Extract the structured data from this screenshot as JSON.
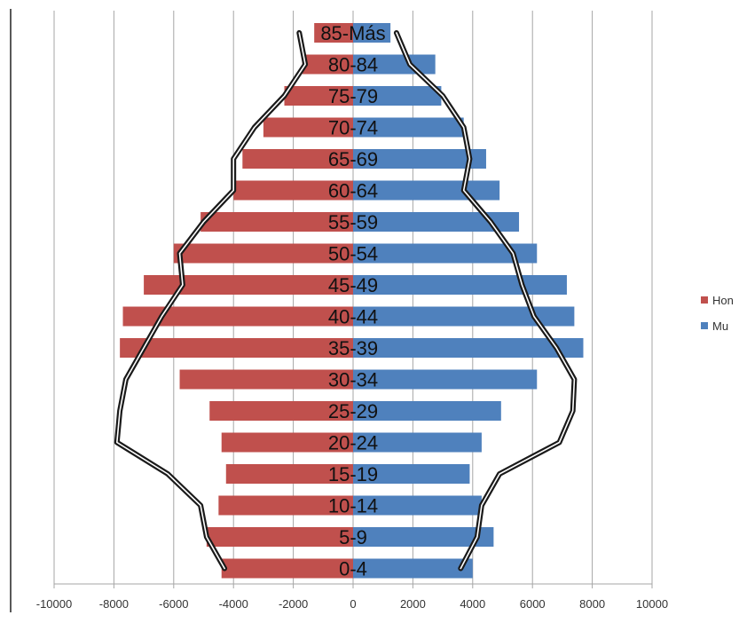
{
  "chart_data": {
    "type": "bar",
    "orientation": "horizontal",
    "stacking": "diverging",
    "categories": [
      "0-4",
      "5-9",
      "10-14",
      "15-19",
      "20-24",
      "25-29",
      "30-34",
      "35-39",
      "40-44",
      "45-49",
      "50-54",
      "55-59",
      "60-64",
      "65-69",
      "70-74",
      "75-79",
      "80-84",
      "85-Más"
    ],
    "series": [
      {
        "name": "Hon",
        "color": "#c0504d",
        "values": [
          -4400,
          -4900,
          -4500,
          -4250,
          -4400,
          -4800,
          -5800,
          -7800,
          -7700,
          -7000,
          -6000,
          -5100,
          -4000,
          -3700,
          -3000,
          -2300,
          -1700,
          -1300
        ]
      },
      {
        "name": "Mu",
        "color": "#4f81bd",
        "values": [
          4000,
          4700,
          4300,
          3900,
          4300,
          4950,
          6150,
          7700,
          7400,
          7150,
          6150,
          5550,
          4900,
          4450,
          3700,
          2950,
          2750,
          1250
        ]
      }
    ],
    "overlay_lines": [
      {
        "color": "#1a1a1a",
        "values": [
          -4300,
          -4900,
          -5100,
          -6200,
          -7900,
          -7800,
          -7600,
          -7000,
          -6400,
          -5700,
          -5800,
          -5000,
          -4000,
          -4000,
          -3300,
          -2300,
          -1600,
          -1800
        ]
      },
      {
        "color": "#1a1a1a",
        "values": [
          3600,
          4150,
          4300,
          4900,
          6900,
          7350,
          7400,
          6800,
          6050,
          5650,
          5350,
          4600,
          3700,
          3900,
          3700,
          3000,
          1900,
          1450
        ]
      }
    ],
    "xticks": [
      "-10000",
      "-8000",
      "-6000",
      "-4000",
      "-2000",
      "0",
      "2000",
      "4000",
      "6000",
      "8000",
      "10000"
    ],
    "xlim": [
      -10000,
      10000
    ],
    "grid": "vertical",
    "legend_position": "right",
    "title": "",
    "xlabel": "",
    "ylabel": ""
  }
}
